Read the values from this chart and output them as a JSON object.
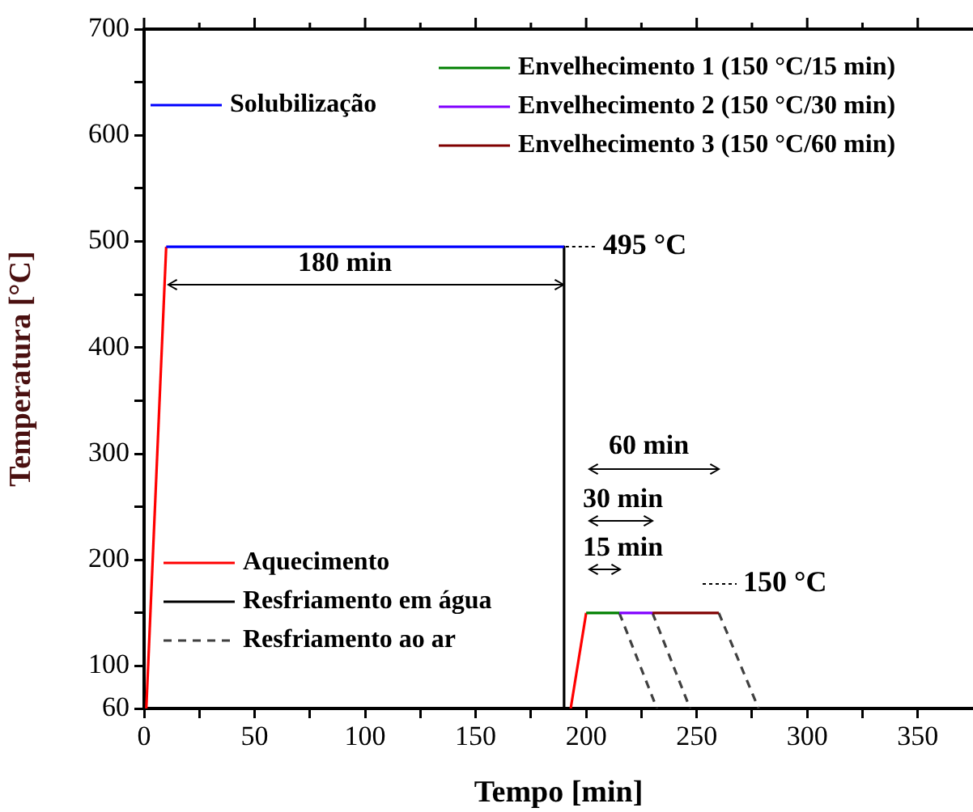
{
  "chart_data": {
    "type": "line",
    "xlabel": "Tempo [min]",
    "ylabel": "Temperatura [°C]",
    "xlim": [
      0,
      375
    ],
    "ylim": [
      60,
      700
    ],
    "xticks": [
      0,
      {
        "value": 25,
        "label": null
      },
      50,
      {
        "value": 75,
        "label": null
      },
      100,
      {
        "value": 125,
        "label": null
      },
      150,
      {
        "value": 175,
        "label": null
      },
      200,
      {
        "value": 225,
        "label": null
      },
      250,
      {
        "value": 275,
        "label": null
      },
      300,
      {
        "value": 325,
        "label": null
      },
      350
    ],
    "yticks": [
      60,
      100,
      {
        "value": 150,
        "label": null
      },
      200,
      {
        "value": 250,
        "label": null
      },
      300,
      {
        "value": 350,
        "label": null
      },
      400,
      {
        "value": 450,
        "label": null
      },
      500,
      {
        "value": 550,
        "label": null
      },
      600,
      {
        "value": 650,
        "label": null
      },
      700
    ],
    "grid": false,
    "legend": "top",
    "marker": "none",
    "series": [
      {
        "name": "Solubilização",
        "color": "#0000ff",
        "x": [
          10,
          190
        ],
        "values": [
          495,
          495
        ]
      },
      {
        "name": "Envelhecimento 1 (150 °C/15 min)",
        "color": "#008000",
        "x": [
          200,
          215
        ],
        "values": [
          150,
          150
        ]
      },
      {
        "name": "Envelhecimento 2 (150 °C/30 min)",
        "color": "#8000ff",
        "x": [
          215,
          230
        ],
        "values": [
          150,
          150
        ]
      },
      {
        "name": "Envelhecimento 3 (150 °C/60 min)",
        "color": "#800000",
        "x": [
          230,
          260
        ],
        "values": [
          150,
          150
        ]
      },
      {
        "name": "Aquecimento",
        "color": "#ff0000",
        "x": [
          1,
          10
        ],
        "values": [
          60,
          495
        ]
      },
      {
        "color": "#ff0000",
        "x": [
          193,
          200
        ],
        "values": [
          60,
          150
        ]
      },
      {
        "name": "Resfriamento em água",
        "color": "#000000",
        "x": [
          190,
          190
        ],
        "values": [
          495,
          60
        ]
      },
      {
        "name": "Resfriamento ao ar",
        "color": "#404040",
        "line_style": "dashed",
        "x": [
          215,
          232
        ],
        "values": [
          150,
          60
        ]
      },
      {
        "color": "#404040",
        "line_style": "dashed",
        "x": [
          230,
          247
        ],
        "values": [
          150,
          60
        ]
      },
      {
        "color": "#404040",
        "line_style": "dashed",
        "x": [
          260,
          278
        ],
        "values": [
          150,
          60
        ]
      }
    ],
    "annotations": [
      {
        "text": "495 °C",
        "x": 190,
        "y": 495
      },
      "180 min",
      "60 min",
      "30 min",
      "15 min",
      "150 °C"
    ]
  }
}
